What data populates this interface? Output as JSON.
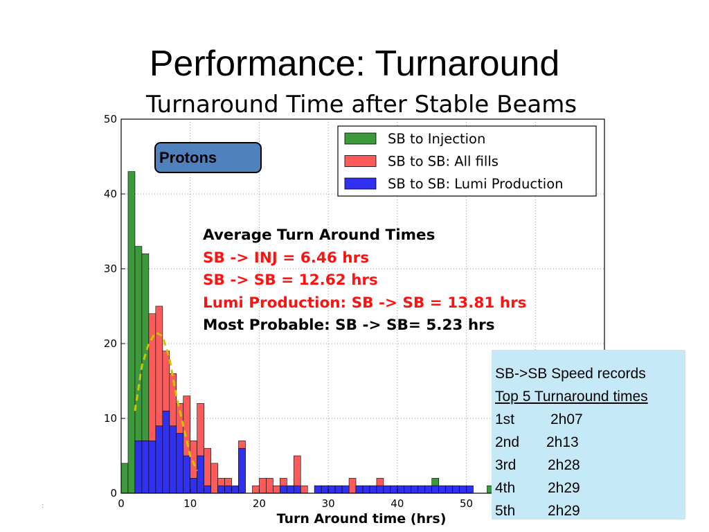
{
  "slide": {
    "title": "Performance: Turnaround"
  },
  "chart_data": {
    "type": "bar",
    "title": "Turnaround Time after Stable Beams",
    "xlabel": "Turn Around time (hrs)",
    "ylabel": "",
    "xlim": [
      0,
      70
    ],
    "ylim": [
      0,
      50
    ],
    "xticks": [
      0,
      10,
      20,
      30,
      40,
      50
    ],
    "yticks": [
      0,
      10,
      20,
      30,
      40,
      50
    ],
    "grid": true,
    "legend_position": "top-right",
    "bin_width": 1,
    "bin_starts": [
      0,
      1,
      2,
      3,
      4,
      5,
      6,
      7,
      8,
      9,
      10,
      11,
      12,
      13,
      14,
      15,
      16,
      17,
      18,
      19,
      20,
      21,
      22,
      23,
      24,
      25,
      26,
      27,
      28,
      29,
      30,
      31,
      32,
      33,
      34,
      35,
      36,
      37,
      38,
      39,
      40,
      41,
      42,
      43,
      44,
      45,
      46,
      47,
      48,
      49,
      50,
      51,
      52,
      53
    ],
    "series": [
      {
        "name": "SB to Injection",
        "color": "#3c9a3c",
        "values": [
          4,
          43,
          33,
          32,
          24,
          20,
          16,
          10,
          8,
          2,
          1,
          0,
          0,
          0,
          0,
          0,
          0,
          0,
          0,
          0,
          0,
          0,
          0,
          0,
          0,
          0,
          0,
          0,
          0,
          0,
          0,
          0,
          0,
          0,
          0,
          0,
          0,
          0,
          0,
          0,
          0,
          0,
          0,
          0,
          0,
          2,
          0,
          0,
          0,
          0,
          0,
          0,
          0,
          1
        ]
      },
      {
        "name": "SB to SB: All fills",
        "color": "#ff5a5a",
        "values": [
          0,
          0,
          7,
          7,
          24,
          25,
          19,
          16,
          12,
          13,
          7,
          12,
          6,
          4,
          2,
          2,
          0,
          7,
          0,
          1,
          2,
          2,
          1,
          2,
          1,
          5,
          1,
          0,
          1,
          1,
          1,
          1,
          1,
          2,
          1,
          1,
          1,
          2,
          1,
          1,
          1,
          1,
          1,
          1,
          1,
          1,
          1,
          1,
          1,
          0,
          0,
          0,
          0,
          0
        ]
      },
      {
        "name": "SB to SB: Lumi Production",
        "color": "#3030f0",
        "values": [
          0,
          0,
          7,
          7,
          7,
          9,
          11,
          9,
          8,
          5,
          2,
          5,
          1,
          0,
          1,
          1,
          1,
          6,
          0,
          0,
          0,
          0,
          0,
          1,
          1,
          1,
          0,
          0,
          1,
          1,
          1,
          1,
          1,
          0,
          1,
          1,
          1,
          1,
          1,
          1,
          1,
          1,
          1,
          1,
          1,
          1,
          1,
          1,
          1,
          1,
          1,
          0,
          0,
          0
        ]
      }
    ],
    "fit_curve": {
      "color": "#c8c800",
      "x": [
        2.0,
        3.0,
        4.0,
        5.0,
        6.0,
        7.0,
        8.0,
        9.0,
        10.0,
        11.0
      ],
      "y": [
        11.0,
        17.0,
        20.0,
        21.5,
        21.0,
        18.0,
        13.0,
        9.0,
        5.0,
        3.0
      ]
    },
    "annotations": {
      "heading": "Average Turn Around Times",
      "sb_inj": "SB -> INJ = 6.46 hrs",
      "sb_sb": "SB -> SB = 12.62 hrs",
      "lumi": "Lumi Production: SB -> SB = 13.81 hrs",
      "most_probable": "Most Probable: SB -> SB= 5.23 hrs"
    }
  },
  "protons_label": "Protons",
  "records": {
    "title": "SB->SB Speed records",
    "subtitle": "Top 5 Turnaround times",
    "rows": [
      {
        "rank": "1st",
        "time": "2h07"
      },
      {
        "rank": "2nd",
        "time": "2h13"
      },
      {
        "rank": "3rd",
        "time": "2h28"
      },
      {
        "rank": "4th",
        "time": "2h29"
      },
      {
        "rank": "5th",
        "time": "2h29"
      }
    ]
  }
}
